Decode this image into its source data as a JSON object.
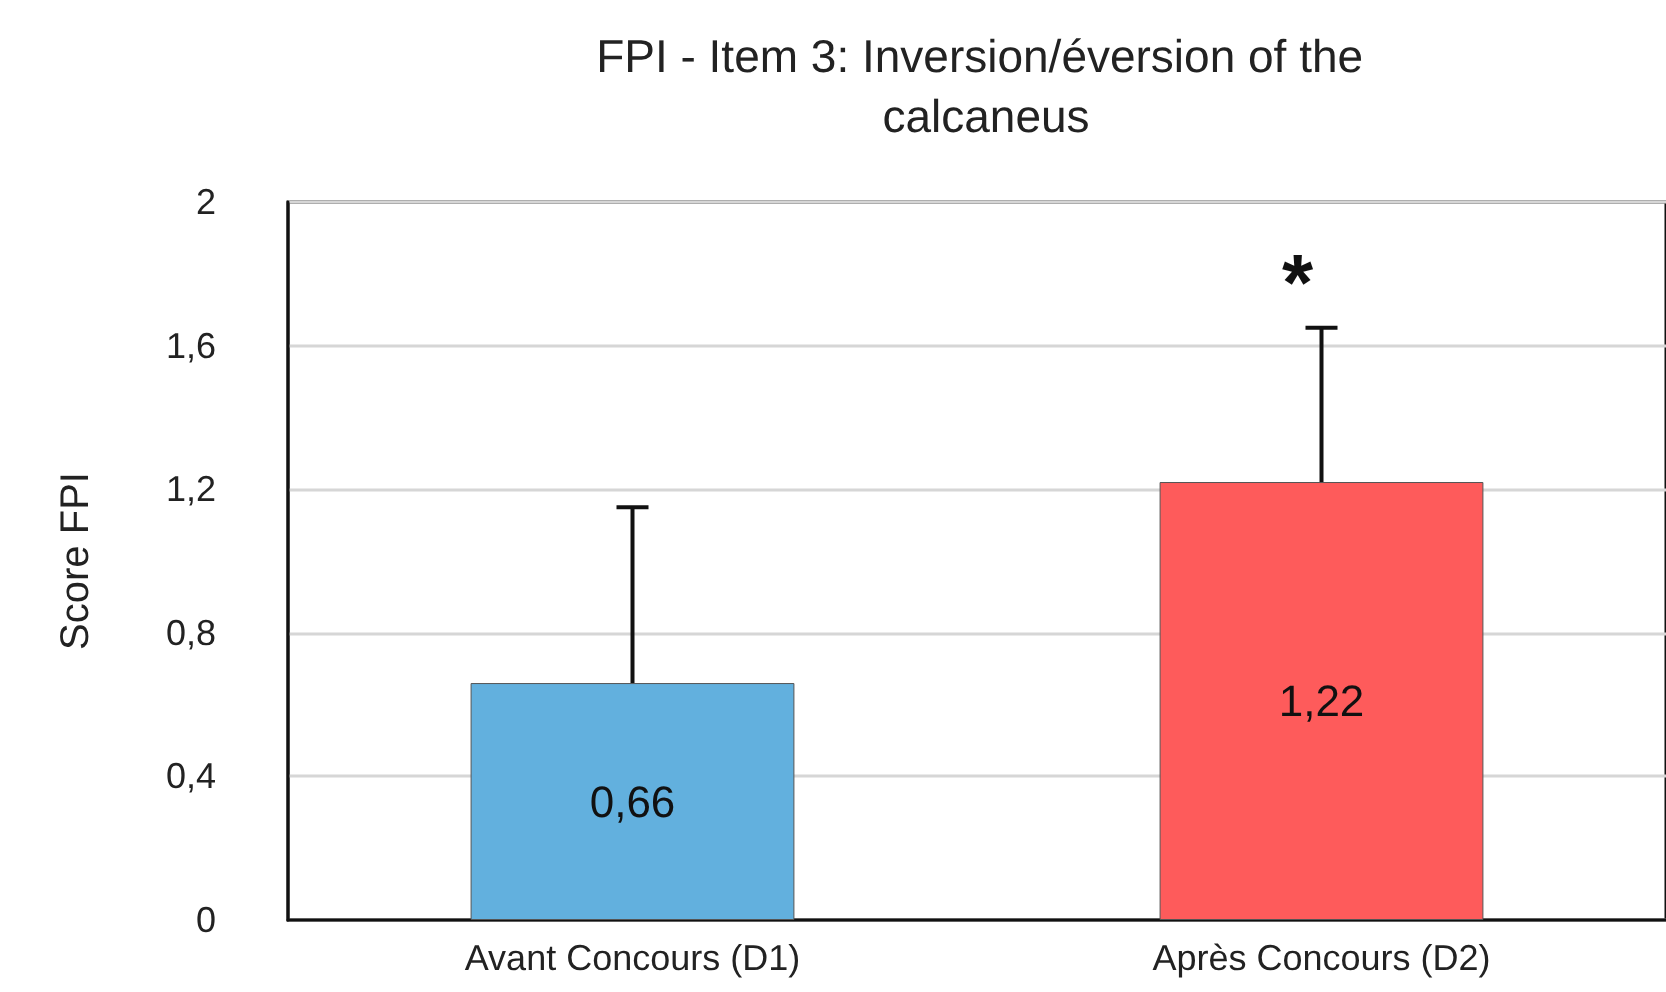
{
  "chart_data": {
    "type": "bar",
    "title": "FPI - Item 3: Inversion/éversion of the calcaneus",
    "ylabel": "Score FPI",
    "categories": [
      "Avant Concours (D1)",
      "Après Concours (D2)"
    ],
    "values": [
      0.66,
      1.22
    ],
    "colors": [
      "#62b0de",
      "#fe5b5b"
    ],
    "value_labels": [
      "0,66",
      "1,22"
    ],
    "errors": [
      [
        0.66,
        1.15
      ],
      [
        1.22,
        1.65
      ]
    ],
    "annotations": [
      "*"
    ],
    "ylim": [
      0,
      2
    ],
    "yticks": [
      0,
      {
        "value": 0.4,
        "label": "0,4"
      },
      {
        "value": 0.8,
        "label": "0,8"
      },
      {
        "value": 1.2,
        "label": "1,2"
      },
      {
        "value": 1.6,
        "label": "1,6"
      },
      2
    ],
    "grid": "y"
  }
}
